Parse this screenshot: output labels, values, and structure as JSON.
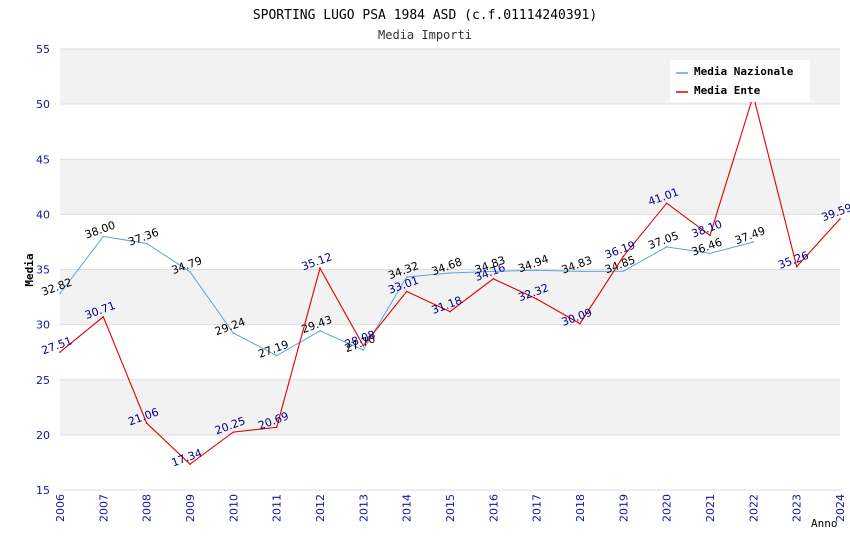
{
  "chart_data": {
    "type": "line",
    "title": "SPORTING LUGO PSA 1984 ASD (c.f.01114240391)",
    "subtitle": "Media Importi",
    "xlabel": "Anno",
    "ylabel": "Media",
    "ylim": [
      15,
      55
    ],
    "yticks": [
      "15",
      "20",
      "25",
      "30",
      "35",
      "40",
      "45",
      "50",
      "55"
    ],
    "categories": [
      "2006",
      "2007",
      "2008",
      "2009",
      "2010",
      "2011",
      "2012",
      "2013",
      "2014",
      "2015",
      "2016",
      "2017",
      "2018",
      "2019",
      "2020",
      "2021",
      "2022",
      "2023",
      "2024"
    ],
    "legend_position": "top-right",
    "series": [
      {
        "name": "Media Nazionale",
        "color": "#5aa5e0",
        "label_color": "#000000",
        "values": [
          32.82,
          38.0,
          37.36,
          34.79,
          29.24,
          27.19,
          29.43,
          27.7,
          34.32,
          34.68,
          34.83,
          34.94,
          34.83,
          34.85,
          37.05,
          36.46,
          37.49,
          null,
          null
        ],
        "labels": [
          "32.82",
          "38.00",
          "37.36",
          "34.79",
          "29.24",
          "27.19",
          "29.43",
          "27.70",
          "34.32",
          "34.68",
          "34.83",
          "34.94",
          "34.83",
          "34.85",
          "37.05",
          "36.46",
          "37.49",
          null,
          null
        ]
      },
      {
        "name": "Media Ente",
        "color": "#e00000",
        "label_color": "#00008b",
        "values": [
          27.51,
          30.71,
          21.06,
          17.34,
          20.25,
          20.69,
          35.12,
          28.08,
          33.01,
          31.18,
          34.16,
          32.32,
          30.09,
          36.19,
          41.01,
          38.1,
          50.77,
          35.26,
          39.59
        ],
        "labels": [
          "27.51",
          "30.71",
          "21.06",
          "17.34",
          "20.25",
          "20.69",
          "35.12",
          "28.08",
          "33.01",
          "31.18",
          "34.16",
          "32.32",
          "30.09",
          "36.19",
          "41.01",
          "38.10",
          null,
          "35.26",
          "39.59"
        ]
      }
    ]
  }
}
